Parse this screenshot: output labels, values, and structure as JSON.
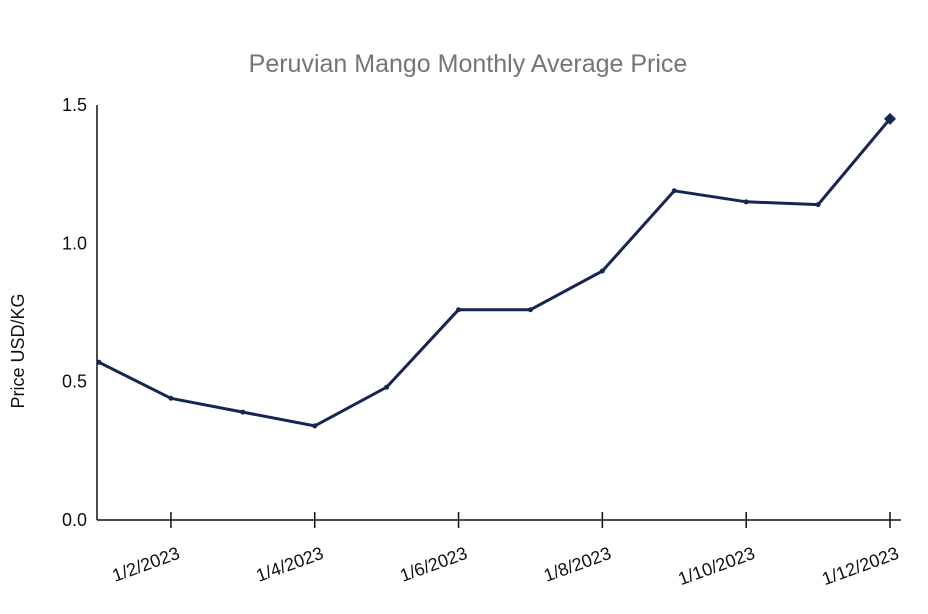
{
  "chart_data": {
    "type": "line",
    "title": "Peruvian Mango Monthly Average Price",
    "ylabel": "Price USD/KG",
    "xlabel": "",
    "ylim": [
      0,
      1.5
    ],
    "yticks": [
      {
        "value": 0,
        "label": "0.0"
      },
      {
        "value": 0.5,
        "label": "0.5"
      },
      {
        "value": 1.0,
        "label": "1.0"
      },
      {
        "value": 1.5,
        "label": "1.5"
      }
    ],
    "x": [
      "1/1/2023",
      "1/2/2023",
      "1/3/2023",
      "1/4/2023",
      "1/5/2023",
      "1/6/2023",
      "1/7/2023",
      "1/8/2023",
      "1/9/2023",
      "1/10/2023",
      "1/11/2023",
      "1/12/2023"
    ],
    "xtick_labels": [
      "1/2/2023",
      "1/4/2023",
      "1/6/2023",
      "1/8/2023",
      "1/10/2023",
      "1/12/2023"
    ],
    "series": [
      {
        "values": [
          0.57,
          0.44,
          0.39,
          0.34,
          0.48,
          0.76,
          0.76,
          0.9,
          1.19,
          1.15,
          1.14,
          1.45
        ],
        "color": "#172554"
      }
    ],
    "grid": false,
    "legend": "none",
    "last_point_marker": "diamond"
  }
}
